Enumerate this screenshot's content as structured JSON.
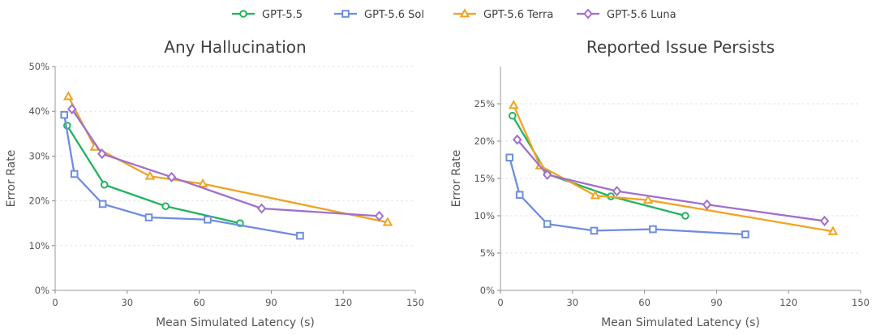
{
  "legend": {
    "position": "top-center",
    "entries": [
      {
        "name": "GPT-5.5",
        "color": "#22b35e",
        "marker": "circle"
      },
      {
        "name": "GPT-5.6 Sol",
        "color": "#6f8de0",
        "marker": "square"
      },
      {
        "name": "GPT-5.6 Terra",
        "color": "#f0a323",
        "marker": "triangle"
      },
      {
        "name": "GPT-5.6 Luna",
        "color": "#a06fcf",
        "marker": "diamond"
      }
    ]
  },
  "chart_data": [
    {
      "type": "line",
      "title": "Any Hallucination",
      "xlabel": "Mean Simulated Latency (s)",
      "ylabel": "Error Rate",
      "xlim": [
        0,
        150
      ],
      "ylim": [
        0,
        0.5
      ],
      "xticks": [
        0,
        30,
        60,
        90,
        120,
        150
      ],
      "yticks": [
        0,
        0.1,
        0.2,
        0.3,
        0.4,
        0.5
      ],
      "ytick_labels": [
        "0%",
        "10%",
        "20%",
        "30%",
        "40%",
        "50%"
      ],
      "grid": "horizontal dashed",
      "series": [
        {
          "name": "GPT-5.5",
          "color": "#22b35e",
          "marker": "circle",
          "x": [
            5,
            20.5,
            46,
            77
          ],
          "y": [
            0.368,
            0.236,
            0.188,
            0.15
          ]
        },
        {
          "name": "GPT-5.6 Sol",
          "color": "#6f8de0",
          "marker": "square",
          "x": [
            3.8,
            8,
            19.8,
            39,
            63.5,
            102
          ],
          "y": [
            0.392,
            0.26,
            0.193,
            0.163,
            0.158,
            0.122
          ]
        },
        {
          "name": "GPT-5.6 Terra",
          "color": "#f0a323",
          "marker": "triangle",
          "x": [
            5.5,
            16.5,
            39.5,
            61.5,
            138.5
          ],
          "y": [
            0.433,
            0.32,
            0.255,
            0.238,
            0.152
          ]
        },
        {
          "name": "GPT-5.6 Luna",
          "color": "#a06fcf",
          "marker": "diamond",
          "x": [
            7,
            19.5,
            48.5,
            86,
            135
          ],
          "y": [
            0.405,
            0.305,
            0.253,
            0.183,
            0.166
          ]
        }
      ]
    },
    {
      "type": "line",
      "title": "Reported Issue Persists",
      "xlabel": "Mean Simulated Latency (s)",
      "ylabel": "Error Rate",
      "xlim": [
        0,
        150
      ],
      "ylim": [
        0,
        0.3
      ],
      "xticks": [
        0,
        30,
        60,
        90,
        120,
        150
      ],
      "yticks": [
        0,
        0.05,
        0.1,
        0.15,
        0.2,
        0.25
      ],
      "ytick_labels": [
        "0%",
        "5%",
        "10%",
        "15%",
        "20%",
        "25%"
      ],
      "grid": "horizontal dashed",
      "series": [
        {
          "name": "GPT-5.5",
          "color": "#22b35e",
          "marker": "circle",
          "x": [
            5,
            19.5,
            46,
            77
          ],
          "y": [
            0.234,
            0.156,
            0.126,
            0.1
          ]
        },
        {
          "name": "GPT-5.6 Sol",
          "color": "#6f8de0",
          "marker": "square",
          "x": [
            3.8,
            8,
            19.5,
            39,
            63.5,
            102
          ],
          "y": [
            0.178,
            0.128,
            0.089,
            0.08,
            0.082,
            0.075
          ]
        },
        {
          "name": "GPT-5.6 Terra",
          "color": "#f0a323",
          "marker": "triangle",
          "x": [
            5.5,
            16.5,
            39.5,
            61.5,
            138.5
          ],
          "y": [
            0.248,
            0.167,
            0.127,
            0.121,
            0.079
          ]
        },
        {
          "name": "GPT-5.6 Luna",
          "color": "#a06fcf",
          "marker": "diamond",
          "x": [
            7,
            19.5,
            48.5,
            86,
            135
          ],
          "y": [
            0.202,
            0.155,
            0.133,
            0.115,
            0.093
          ]
        }
      ]
    }
  ]
}
